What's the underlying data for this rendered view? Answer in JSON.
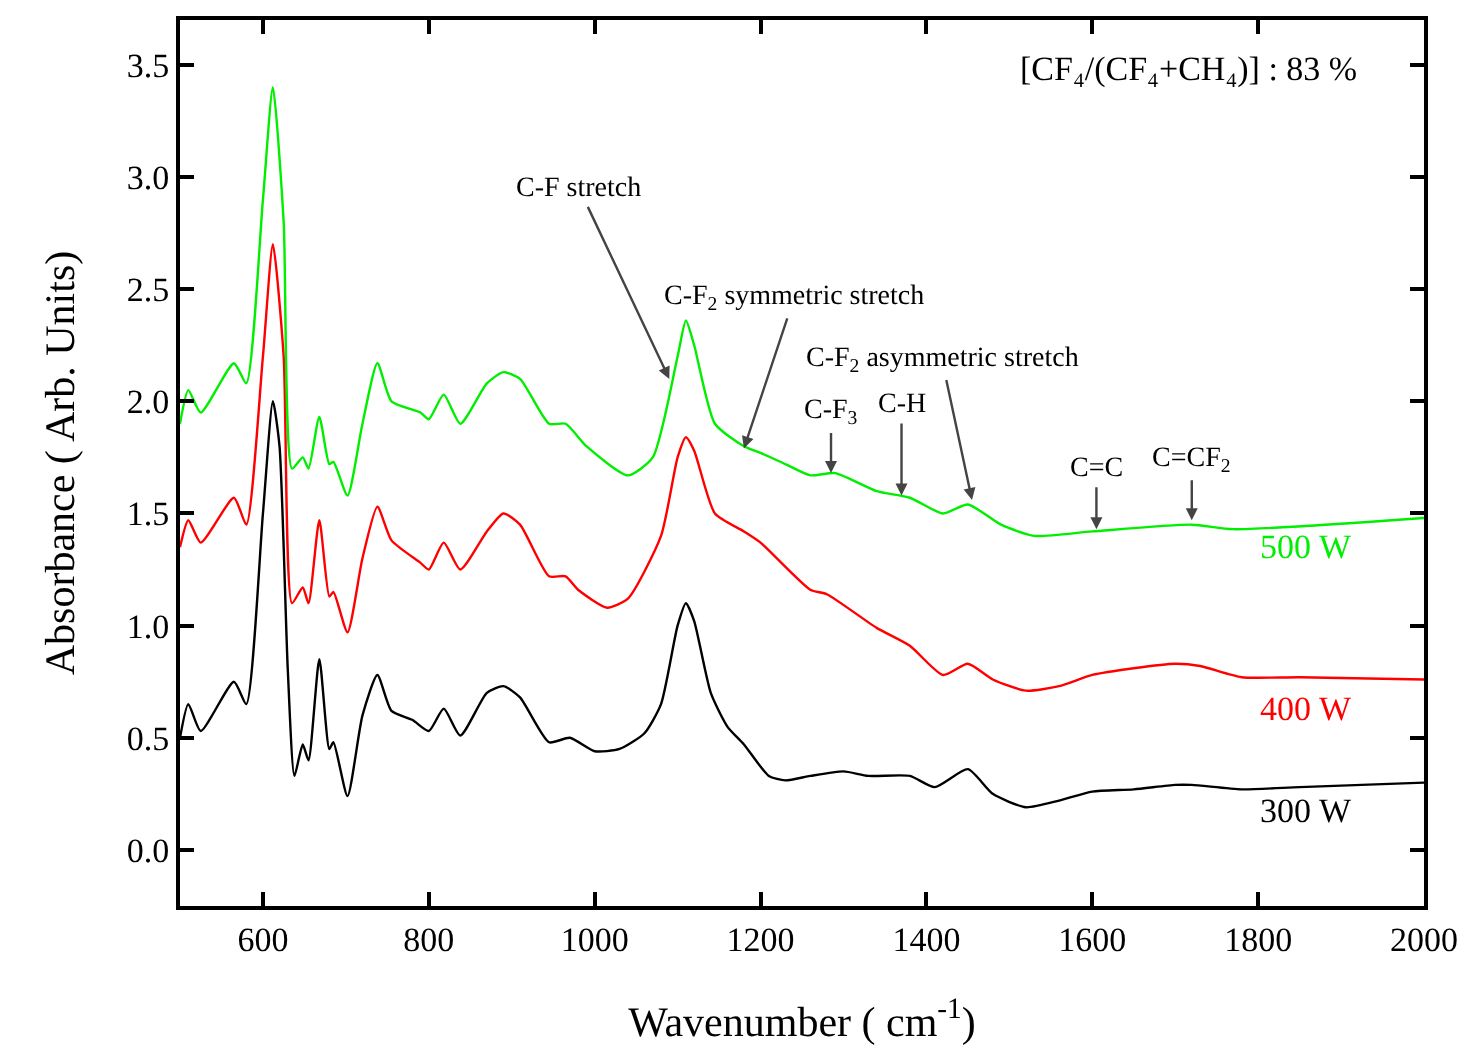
{
  "chart_data": {
    "type": "line",
    "xlabel": "Wavenumber ( cm$^{-1}$)",
    "ylabel": "Absorbance ( Arb. Units)",
    "xlim": [
      500,
      2000
    ],
    "xticks": [
      600,
      800,
      1000,
      1200,
      1400,
      1600,
      1800,
      2000
    ],
    "ylim": [
      -0.25,
      3.7
    ],
    "yticks": [
      {
        "value": 0,
        "label": "0.0"
      },
      0.5,
      {
        "value": 1,
        "label": "1.0"
      },
      1.5,
      {
        "value": 2,
        "label": "2.0"
      },
      2.5,
      {
        "value": 3,
        "label": "3.0"
      },
      3.5
    ],
    "grid": false,
    "legend": false,
    "marker": "none",
    "line_style": "solid",
    "series": [
      {
        "name": "300 W",
        "color": "#000000",
        "x": [
          500,
          510,
          525,
          565,
          580,
          600,
          612,
          620,
          630,
          638,
          648,
          655,
          668,
          680,
          685,
          702,
          720,
          738,
          755,
          780,
          800,
          818,
          838,
          870,
          890,
          910,
          945,
          970,
          1000,
          1030,
          1060,
          1080,
          1100,
          1110,
          1120,
          1140,
          1160,
          1180,
          1210,
          1230,
          1260,
          1300,
          1330,
          1380,
          1410,
          1450,
          1480,
          1520,
          1560,
          1600,
          1650,
          1700,
          1720,
          1780,
          1850,
          2000
        ],
        "values": [
          0.5,
          0.65,
          0.53,
          0.75,
          0.65,
          1.5,
          2.0,
          1.8,
          0.8,
          0.33,
          0.47,
          0.4,
          0.85,
          0.45,
          0.48,
          0.24,
          0.6,
          0.78,
          0.62,
          0.58,
          0.53,
          0.63,
          0.51,
          0.7,
          0.73,
          0.68,
          0.48,
          0.5,
          0.44,
          0.45,
          0.52,
          0.65,
          1.0,
          1.1,
          1.02,
          0.7,
          0.55,
          0.47,
          0.33,
          0.31,
          0.33,
          0.35,
          0.33,
          0.33,
          0.28,
          0.36,
          0.25,
          0.19,
          0.22,
          0.26,
          0.27,
          0.29,
          0.29,
          0.27,
          0.28,
          0.3
        ]
      },
      {
        "name": "400 W",
        "color": "#ff0000",
        "x": [
          500,
          510,
          525,
          565,
          580,
          600,
          612,
          625,
          635,
          648,
          655,
          668,
          680,
          685,
          702,
          720,
          738,
          755,
          790,
          800,
          818,
          838,
          870,
          890,
          910,
          945,
          965,
          980,
          1015,
          1040,
          1080,
          1100,
          1110,
          1120,
          1145,
          1180,
          1200,
          1260,
          1280,
          1340,
          1380,
          1420,
          1450,
          1480,
          1520,
          1560,
          1600,
          1650,
          1700,
          1730,
          1780,
          1850,
          2000
        ],
        "values": [
          1.35,
          1.47,
          1.37,
          1.57,
          1.45,
          2.2,
          2.7,
          2.2,
          1.1,
          1.17,
          1.1,
          1.47,
          1.13,
          1.15,
          0.97,
          1.3,
          1.53,
          1.38,
          1.28,
          1.25,
          1.37,
          1.25,
          1.42,
          1.5,
          1.45,
          1.22,
          1.22,
          1.16,
          1.08,
          1.12,
          1.4,
          1.75,
          1.84,
          1.78,
          1.5,
          1.42,
          1.37,
          1.16,
          1.14,
          0.99,
          0.91,
          0.78,
          0.83,
          0.76,
          0.71,
          0.73,
          0.78,
          0.81,
          0.83,
          0.82,
          0.77,
          0.77,
          0.76
        ]
      },
      {
        "name": "500 W",
        "color": "#00ee00",
        "x": [
          500,
          510,
          525,
          565,
          580,
          600,
          612,
          625,
          635,
          648,
          655,
          668,
          680,
          685,
          702,
          720,
          738,
          755,
          790,
          800,
          818,
          838,
          870,
          890,
          910,
          945,
          965,
          990,
          1040,
          1070,
          1100,
          1110,
          1120,
          1145,
          1180,
          1200,
          1230,
          1260,
          1290,
          1340,
          1380,
          1420,
          1450,
          1490,
          1530,
          1600,
          1720,
          1770,
          2000
        ],
        "values": [
          1.9,
          2.05,
          1.95,
          2.17,
          2.08,
          2.9,
          3.4,
          2.8,
          1.7,
          1.75,
          1.7,
          1.93,
          1.72,
          1.73,
          1.58,
          1.9,
          2.17,
          2.0,
          1.95,
          1.92,
          2.03,
          1.9,
          2.08,
          2.13,
          2.1,
          1.9,
          1.9,
          1.8,
          1.67,
          1.75,
          2.2,
          2.36,
          2.25,
          1.9,
          1.8,
          1.77,
          1.72,
          1.67,
          1.68,
          1.6,
          1.57,
          1.5,
          1.54,
          1.45,
          1.4,
          1.42,
          1.45,
          1.43,
          1.48
        ]
      }
    ],
    "annotations": [
      {
        "text": "C-F stretch",
        "x": 1090,
        "y": 2.1
      },
      {
        "text": "C-F$_{2}$ symmetric stretch",
        "x": 1180,
        "y": 1.79
      },
      {
        "text": "C-F$_{3}$",
        "x": 1285,
        "y": 1.68
      },
      {
        "text": "C-H",
        "x": 1370,
        "y": 1.58
      },
      {
        "text": "C-F$_{2}$ asymmetric stretch",
        "x": 1455,
        "y": 1.56
      },
      {
        "text": "C=C",
        "x": 1605,
        "y": 1.43
      },
      {
        "text": "C=CF$_{2}$",
        "x": 1720,
        "y": 1.47
      },
      "[CF₄/(CF₄+CH₄)] : 83 %"
    ]
  }
}
